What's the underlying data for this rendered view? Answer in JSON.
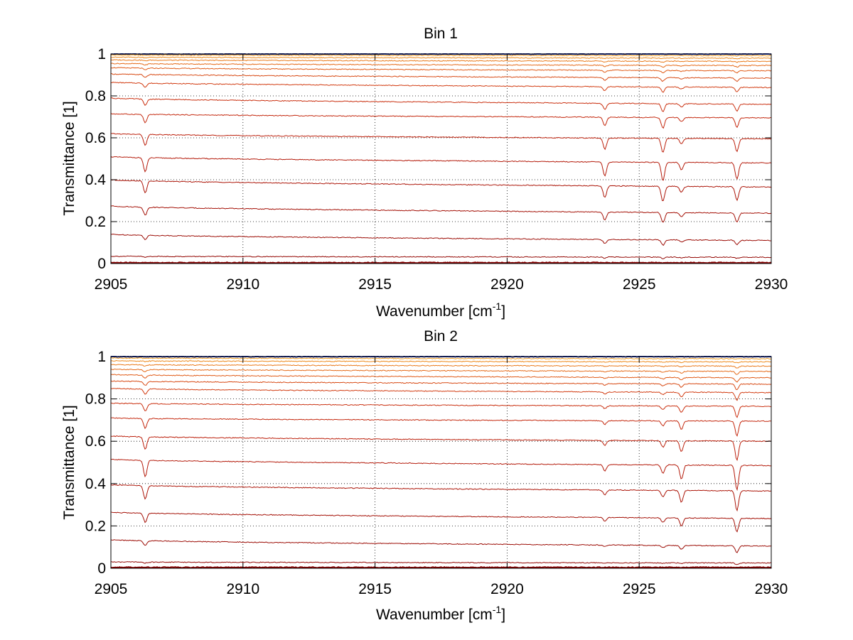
{
  "chart_data": [
    {
      "type": "line",
      "title": "Bin 1",
      "xlabel": "Wavenumber [cm",
      "xlabel_superscript": "-1",
      "xlabel_suffix": "]",
      "ylabel": "Transmittance [1]",
      "xlim": [
        2905,
        2930
      ],
      "ylim": [
        0,
        1
      ],
      "xticks": [
        2905,
        2910,
        2915,
        2920,
        2925,
        2930
      ],
      "yticks": [
        0,
        0.2,
        0.4,
        0.6,
        0.8,
        1
      ],
      "ytick_labels": [
        "0",
        "0.2",
        "0.4",
        "0.6",
        "0.8",
        "1"
      ],
      "grid": true,
      "absorption_lines": [
        {
          "x": 2906.3,
          "rel_depth": 0.07
        },
        {
          "x": 2923.7,
          "rel_depth": 0.07
        },
        {
          "x": 2925.9,
          "rel_depth": 0.09
        },
        {
          "x": 2926.6,
          "rel_depth": 0.035
        },
        {
          "x": 2928.7,
          "rel_depth": 0.08
        }
      ],
      "series": [
        {
          "start": 1.0,
          "end": 1.0,
          "color": "#1a2fa0"
        },
        {
          "start": 0.995,
          "end": 0.992,
          "color": "#f2a020"
        },
        {
          "start": 0.985,
          "end": 0.98,
          "color": "#ee8a1c"
        },
        {
          "start": 0.972,
          "end": 0.965,
          "color": "#ea7a1a"
        },
        {
          "start": 0.955,
          "end": 0.945,
          "color": "#e56a18"
        },
        {
          "start": 0.935,
          "end": 0.92,
          "color": "#e05a16"
        },
        {
          "start": 0.905,
          "end": 0.885,
          "color": "#d84a14"
        },
        {
          "start": 0.865,
          "end": 0.84,
          "color": "#d23c12"
        },
        {
          "start": 0.79,
          "end": 0.76,
          "color": "#ca3010"
        },
        {
          "start": 0.715,
          "end": 0.695,
          "color": "#c4280e"
        },
        {
          "start": 0.62,
          "end": 0.595,
          "color": "#bc200c"
        },
        {
          "start": 0.51,
          "end": 0.48,
          "color": "#b41a0a"
        },
        {
          "start": 0.4,
          "end": 0.365,
          "color": "#ac1508"
        },
        {
          "start": 0.275,
          "end": 0.24,
          "color": "#a41006"
        },
        {
          "start": 0.14,
          "end": 0.11,
          "color": "#9c0c05"
        },
        {
          "start": 0.035,
          "end": 0.03,
          "color": "#940804"
        },
        {
          "start": 0.004,
          "end": 0.004,
          "color": "#8a0404"
        }
      ]
    },
    {
      "type": "line",
      "title": "Bin 2",
      "xlabel": "Wavenumber [cm",
      "xlabel_superscript": "-1",
      "xlabel_suffix": "]",
      "ylabel": "Transmittance [1]",
      "xlim": [
        2905,
        2930
      ],
      "ylim": [
        0,
        1
      ],
      "xticks": [
        2905,
        2910,
        2915,
        2920,
        2925,
        2930
      ],
      "yticks": [
        0,
        0.2,
        0.4,
        0.6,
        0.8,
        1
      ],
      "ytick_labels": [
        "0",
        "0.2",
        "0.4",
        "0.6",
        "0.8",
        "1"
      ],
      "grid": true,
      "absorption_lines": [
        {
          "x": 2906.3,
          "rel_depth": 0.08
        },
        {
          "x": 2923.7,
          "rel_depth": 0.03
        },
        {
          "x": 2925.9,
          "rel_depth": 0.04
        },
        {
          "x": 2926.6,
          "rel_depth": 0.07
        },
        {
          "x": 2928.7,
          "rel_depth": 0.12
        }
      ],
      "series": [
        {
          "start": 1.0,
          "end": 1.0,
          "color": "#1a2fa0"
        },
        {
          "start": 0.993,
          "end": 0.99,
          "color": "#f2a020"
        },
        {
          "start": 0.98,
          "end": 0.975,
          "color": "#ee8a1c"
        },
        {
          "start": 0.962,
          "end": 0.955,
          "color": "#ea7a1a"
        },
        {
          "start": 0.94,
          "end": 0.93,
          "color": "#e56a18"
        },
        {
          "start": 0.915,
          "end": 0.9,
          "color": "#e05a16"
        },
        {
          "start": 0.885,
          "end": 0.87,
          "color": "#d84a14"
        },
        {
          "start": 0.85,
          "end": 0.83,
          "color": "#d23c12"
        },
        {
          "start": 0.78,
          "end": 0.765,
          "color": "#ca3010"
        },
        {
          "start": 0.71,
          "end": 0.695,
          "color": "#c4280e"
        },
        {
          "start": 0.625,
          "end": 0.6,
          "color": "#bc200c"
        },
        {
          "start": 0.515,
          "end": 0.485,
          "color": "#b41a0a"
        },
        {
          "start": 0.395,
          "end": 0.365,
          "color": "#ac1508"
        },
        {
          "start": 0.265,
          "end": 0.235,
          "color": "#a41006"
        },
        {
          "start": 0.135,
          "end": 0.105,
          "color": "#9c0c05"
        },
        {
          "start": 0.03,
          "end": 0.025,
          "color": "#940804"
        },
        {
          "start": 0.004,
          "end": 0.004,
          "color": "#8a0404"
        }
      ]
    }
  ]
}
